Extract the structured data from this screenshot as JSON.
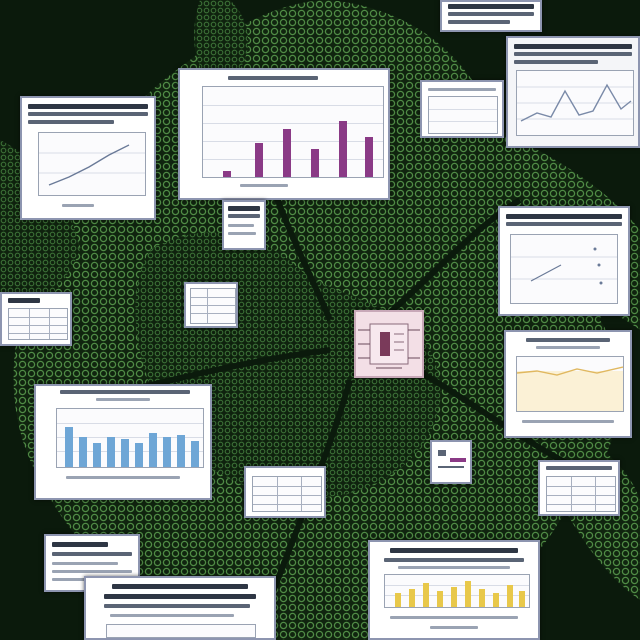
{
  "scene": {
    "description_colors": {
      "background": "#0d1f10",
      "foliage": "#3f7a3a",
      "card": "#f4f5f8",
      "purple_bar": "#8a3a86",
      "blue_bar": "#6ea6d6",
      "yellow_bar": "#e8c84a"
    },
    "icons": [
      "chip-icon",
      "mini-chart-icon"
    ]
  }
}
